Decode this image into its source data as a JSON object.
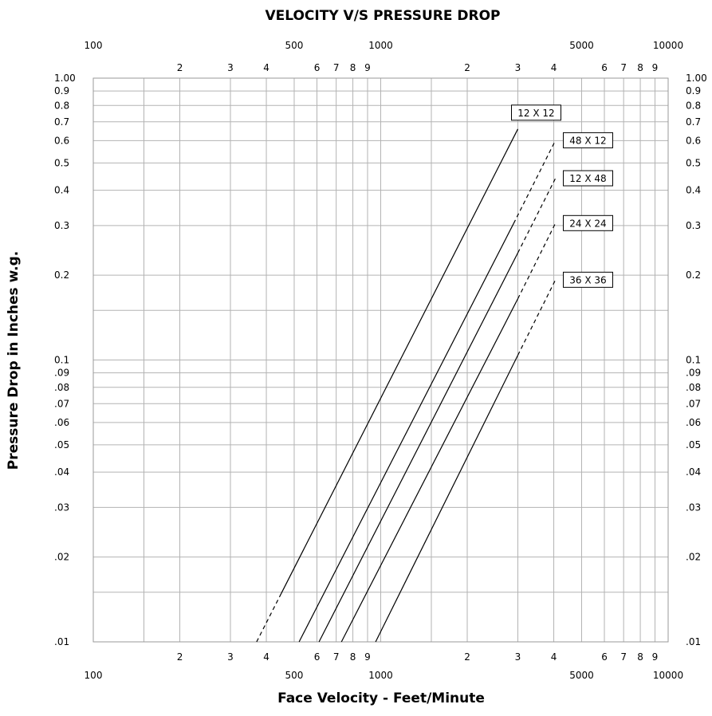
{
  "chart_data": {
    "type": "line",
    "title": "VELOCITY V/S PRESSURE DROP",
    "xlabel": "Face Velocity - Feet/Minute",
    "ylabel": "Pressure Drop in Inches w.g.",
    "x_scale": "log",
    "y_scale": "log",
    "xlim": [
      100,
      10000
    ],
    "ylim": [
      0.01,
      1.0
    ],
    "grid": true,
    "x_major_ticks": [
      {
        "value": 100,
        "label": "100"
      },
      {
        "value": 500,
        "label": "500"
      },
      {
        "value": 1000,
        "label": "1000"
      },
      {
        "value": 5000,
        "label": "5000"
      },
      {
        "value": 10000,
        "label": "10000"
      }
    ],
    "x_minor_ticks": [
      {
        "value": 200,
        "label": "2"
      },
      {
        "value": 300,
        "label": "3"
      },
      {
        "value": 400,
        "label": "4"
      },
      {
        "value": 600,
        "label": "6"
      },
      {
        "value": 700,
        "label": "7"
      },
      {
        "value": 800,
        "label": "8"
      },
      {
        "value": 900,
        "label": "9"
      },
      {
        "value": 2000,
        "label": "2"
      },
      {
        "value": 3000,
        "label": "3"
      },
      {
        "value": 4000,
        "label": "4"
      },
      {
        "value": 6000,
        "label": "6"
      },
      {
        "value": 7000,
        "label": "7"
      },
      {
        "value": 8000,
        "label": "8"
      },
      {
        "value": 9000,
        "label": "9"
      }
    ],
    "x_grid_values": [
      100,
      150,
      200,
      300,
      400,
      500,
      600,
      700,
      800,
      900,
      1000,
      1500,
      2000,
      3000,
      4000,
      5000,
      6000,
      7000,
      8000,
      9000,
      10000
    ],
    "y_ticks": [
      {
        "value": 1.0,
        "label": "1.00",
        "label_right": "1.00"
      },
      {
        "value": 0.9,
        "label": "0.9",
        "label_right": "0.9"
      },
      {
        "value": 0.8,
        "label": "0.8",
        "label_right": "0.8"
      },
      {
        "value": 0.7,
        "label": "0.7",
        "label_right": "0.7"
      },
      {
        "value": 0.6,
        "label": "0.6",
        "label_right": "0.6"
      },
      {
        "value": 0.5,
        "label": "0.5",
        "label_right": "0.5"
      },
      {
        "value": 0.4,
        "label": "0.4",
        "label_right": "0.4"
      },
      {
        "value": 0.3,
        "label": "0.3",
        "label_right": "0.3"
      },
      {
        "value": 0.2,
        "label": "0.2",
        "label_right": "0.2"
      },
      {
        "value": 0.1,
        "label": "0.1",
        "label_right": "0.1"
      },
      {
        "value": 0.09,
        "label": ".09",
        "label_right": ".09"
      },
      {
        "value": 0.08,
        "label": ".08",
        "label_right": ".08"
      },
      {
        "value": 0.07,
        "label": ".07",
        "label_right": ".07"
      },
      {
        "value": 0.06,
        "label": ".06",
        "label_right": ".06"
      },
      {
        "value": 0.05,
        "label": ".05",
        "label_right": ".05"
      },
      {
        "value": 0.04,
        "label": ".04",
        "label_right": ".04"
      },
      {
        "value": 0.03,
        "label": ".03",
        "label_right": ".03"
      },
      {
        "value": 0.02,
        "label": ".02",
        "label_right": ".02"
      },
      {
        "value": 0.01,
        "label": ".01",
        "label_right": ".01"
      }
    ],
    "y_grid_values": [
      1.0,
      0.9,
      0.8,
      0.7,
      0.6,
      0.5,
      0.4,
      0.3,
      0.2,
      0.15,
      0.1,
      0.09,
      0.08,
      0.07,
      0.06,
      0.05,
      0.04,
      0.03,
      0.02,
      0.015,
      0.01
    ],
    "series": [
      {
        "name": "12 X 12",
        "solid": [
          [
            450,
            0.0148
          ],
          [
            3000,
            0.66
          ]
        ],
        "dashed": [
          [
            370,
            0.01
          ],
          [
            450,
            0.0148
          ]
        ],
        "label_at": [
          3000,
          0.66
        ]
      },
      {
        "name": "48 X 12",
        "solid": [
          [
            520,
            0.01
          ],
          [
            2900,
            0.305
          ]
        ],
        "dashed": [
          [
            2900,
            0.305
          ],
          [
            4050,
            0.6
          ]
        ],
        "label_at": [
          4050,
          0.6
        ]
      },
      {
        "name": "12 X 48",
        "solid": [
          [
            610,
            0.01
          ],
          [
            3000,
            0.24
          ]
        ],
        "dashed": [
          [
            3000,
            0.24
          ],
          [
            4050,
            0.44
          ]
        ],
        "label_at": [
          4050,
          0.44
        ]
      },
      {
        "name": "24 X 24",
        "solid": [
          [
            730,
            0.01
          ],
          [
            3000,
            0.165
          ]
        ],
        "dashed": [
          [
            3000,
            0.165
          ],
          [
            4050,
            0.305
          ]
        ],
        "label_at": [
          4050,
          0.305
        ]
      },
      {
        "name": "36 X 36",
        "solid": [
          [
            960,
            0.01
          ],
          [
            3000,
            0.104
          ]
        ],
        "dashed": [
          [
            3000,
            0.104
          ],
          [
            4050,
            0.192
          ]
        ],
        "label_at": [
          4050,
          0.192
        ]
      }
    ],
    "colors": {
      "line": "#000000",
      "grid": "#b3b3b3",
      "frame": "#999999"
    }
  }
}
